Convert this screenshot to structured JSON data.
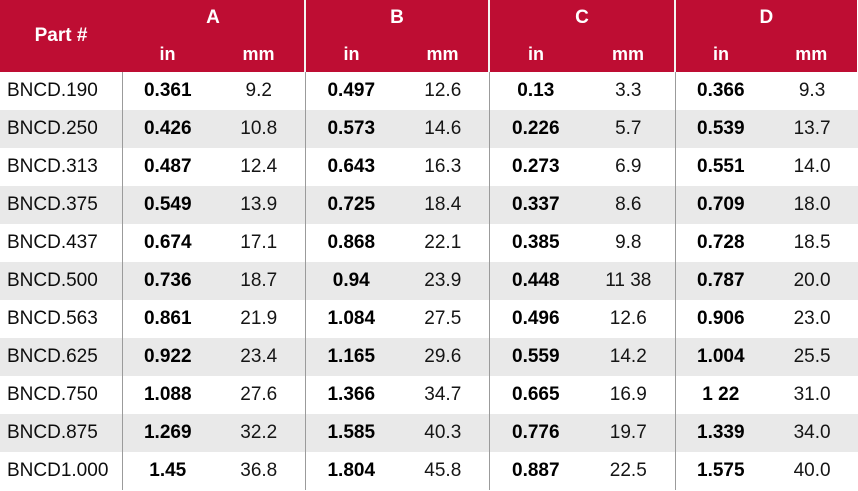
{
  "chart_data": {
    "type": "table",
    "header": {
      "part_label": "Part #",
      "groups": [
        {
          "label": "A"
        },
        {
          "label": "B"
        },
        {
          "label": "C"
        },
        {
          "label": "D"
        }
      ],
      "unit_in": "in",
      "unit_mm": "mm"
    },
    "columns": [
      "Part #",
      "A in",
      "A mm",
      "B in",
      "B mm",
      "C in",
      "C mm",
      "D in",
      "D mm"
    ],
    "rows": [
      [
        "BNCD.190",
        "0.361",
        "9.2",
        "0.497",
        "12.6",
        "0.13",
        "3.3",
        "0.366",
        "9.3"
      ],
      [
        "BNCD.250",
        "0.426",
        "10.8",
        "0.573",
        "14.6",
        "0.226",
        "5.7",
        "0.539",
        "13.7"
      ],
      [
        "BNCD.313",
        "0.487",
        "12.4",
        "0.643",
        "16.3",
        "0.273",
        "6.9",
        "0.551",
        "14.0"
      ],
      [
        "BNCD.375",
        "0.549",
        "13.9",
        "0.725",
        "18.4",
        "0.337",
        "8.6",
        "0.709",
        "18.0"
      ],
      [
        "BNCD.437",
        "0.674",
        "17.1",
        "0.868",
        "22.1",
        "0.385",
        "9.8",
        "0.728",
        "18.5"
      ],
      [
        "BNCD.500",
        "0.736",
        "18.7",
        "0.94",
        "23.9",
        "0.448",
        "11 38",
        "0.787",
        "20.0"
      ],
      [
        "BNCD.563",
        "0.861",
        "21.9",
        "1.084",
        "27.5",
        "0.496",
        "12.6",
        "0.906",
        "23.0"
      ],
      [
        "BNCD.625",
        "0.922",
        "23.4",
        "1.165",
        "29.6",
        "0.559",
        "14.2",
        "1.004",
        "25.5"
      ],
      [
        "BNCD.750",
        "1.088",
        "27.6",
        "1.366",
        "34.7",
        "0.665",
        "16.9",
        "1 22",
        "31.0"
      ],
      [
        "BNCD.875",
        "1.269",
        "32.2",
        "1.585",
        "40.3",
        "0.776",
        "19.7",
        "1.339",
        "34.0"
      ],
      [
        "BNCD1.000",
        "1.45",
        "36.8",
        "1.804",
        "45.8",
        "0.887",
        "22.5",
        "1.575",
        "40.0"
      ]
    ],
    "colors": {
      "header_bg": "#be0d33",
      "header_text": "#ffffff",
      "row_alt_bg": "#e9e9e9",
      "body_divider": "#9b9b9b"
    }
  }
}
